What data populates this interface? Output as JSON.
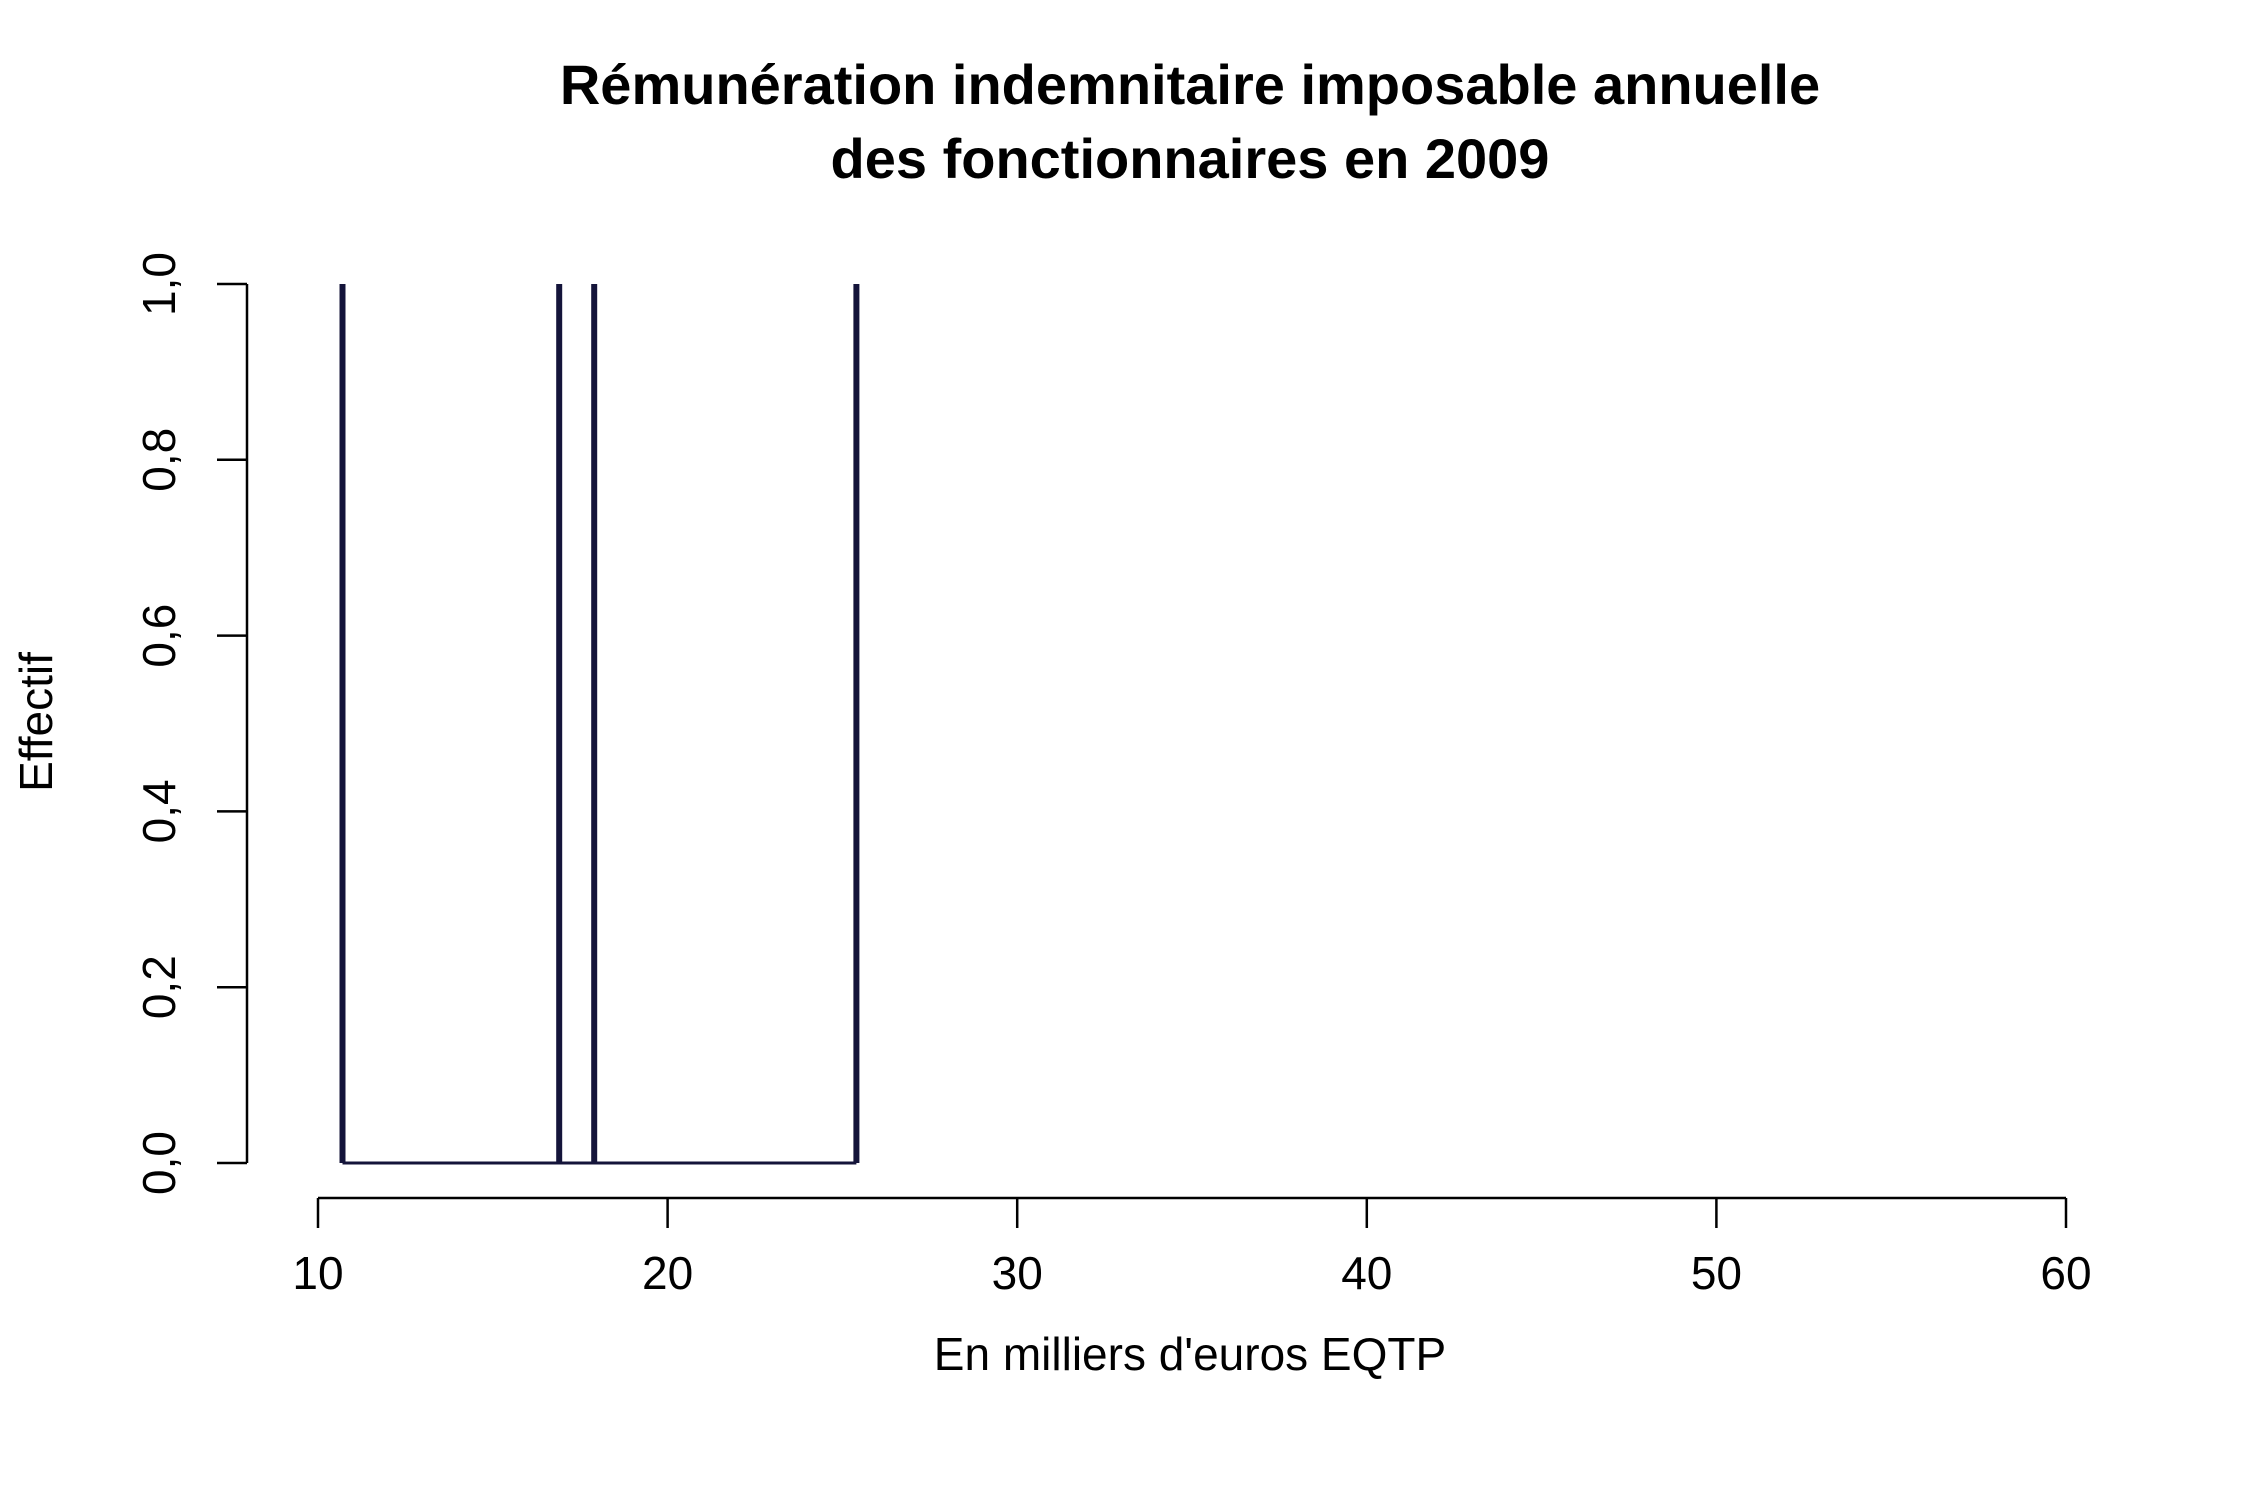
{
  "chart_data": {
    "type": "bar",
    "title_lines": [
      "Rémunération indemnitaire imposable annuelle",
      "des fonctionnaires en 2009"
    ],
    "xlabel": "En milliers d'euros EQTP",
    "ylabel": "Effectif",
    "xlim": [
      10,
      60
    ],
    "ylim": [
      0,
      1
    ],
    "x_ticks": [
      10,
      20,
      30,
      40,
      50,
      60
    ],
    "x_tick_labels": [
      "10",
      "20",
      "30",
      "40",
      "50",
      "60"
    ],
    "y_ticks": [
      0,
      0.2,
      0.4,
      0.6,
      0.8,
      1.0
    ],
    "y_tick_labels": [
      "0,0",
      "0,2",
      "0,4",
      "0,6",
      "0,8",
      "1,0"
    ],
    "grid": false,
    "bar_color": "#14143a",
    "bars": [
      {
        "x": 10.7,
        "value": 1
      },
      {
        "x": 16.9,
        "value": 1
      },
      {
        "x": 17.9,
        "value": 1
      },
      {
        "x": 25.4,
        "value": 1
      }
    ]
  }
}
